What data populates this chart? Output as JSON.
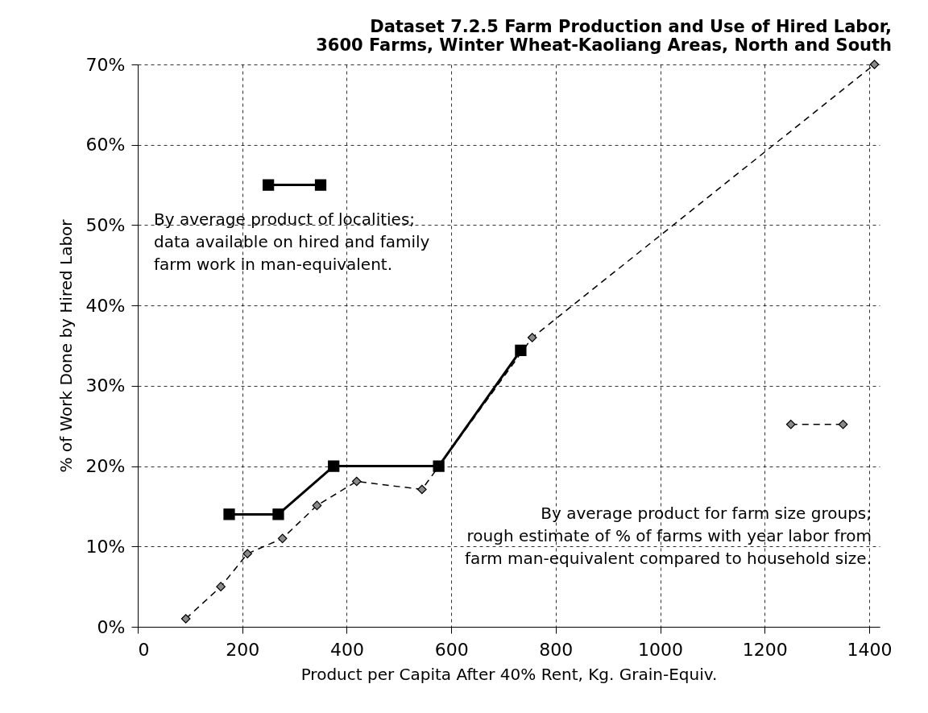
{
  "chart_data": {
    "type": "line",
    "title": [
      "Dataset 7.2.5  Farm Production and Use of Hired Labor,",
      "3600 Farms, Winter Wheat-Kaoliang Areas, North and South"
    ],
    "xlabel": "Product per Capita After 40% Rent, Kg. Grain-Equiv.",
    "ylabel": "% of Work Done by Hired Labor",
    "series": [
      {
        "color": "#000000",
        "marker": "square",
        "line_style": "solid",
        "x": [
          250,
          350,
          300,
          175,
          269,
          375,
          576,
          733
        ],
        "values": [
          55,
          55,
          null,
          14,
          14,
          20,
          20,
          34.4
        ]
      },
      {
        "color": "#000000",
        "marker": "diamond",
        "line_style": "dashed",
        "x": [
          92,
          159,
          210,
          277,
          343,
          419,
          544,
          755,
          1410,
          1330,
          1250,
          1350
        ],
        "values": [
          1,
          5,
          9.1,
          11,
          15.1,
          18.1,
          17.1,
          36,
          70,
          null,
          25.2,
          25.2
        ]
      }
    ],
    "annotations": [
      "By average product of localities;\ndata available on hired and family\nfarm work in man-equivalent.",
      "By average product for farm size groups;\nrough estimate of % of farms with year labor from\nfarm man-equivalent compared to household size."
    ],
    "xlim": [
      0,
      1420
    ],
    "xticks": [
      0,
      200,
      400,
      600,
      800,
      1000,
      1200,
      1400
    ],
    "ylim": [
      0,
      70
    ],
    "yticks": [
      {
        "value": 0,
        "label": "0%"
      },
      {
        "value": 10,
        "label": "10%"
      },
      {
        "value": 20,
        "label": "20%"
      },
      {
        "value": 30,
        "label": "30%"
      },
      {
        "value": 40,
        "label": "40%"
      },
      {
        "value": 50,
        "label": "50%"
      },
      {
        "value": 60,
        "label": "60%"
      },
      {
        "value": 70,
        "label": "70%"
      }
    ],
    "grid": true
  }
}
